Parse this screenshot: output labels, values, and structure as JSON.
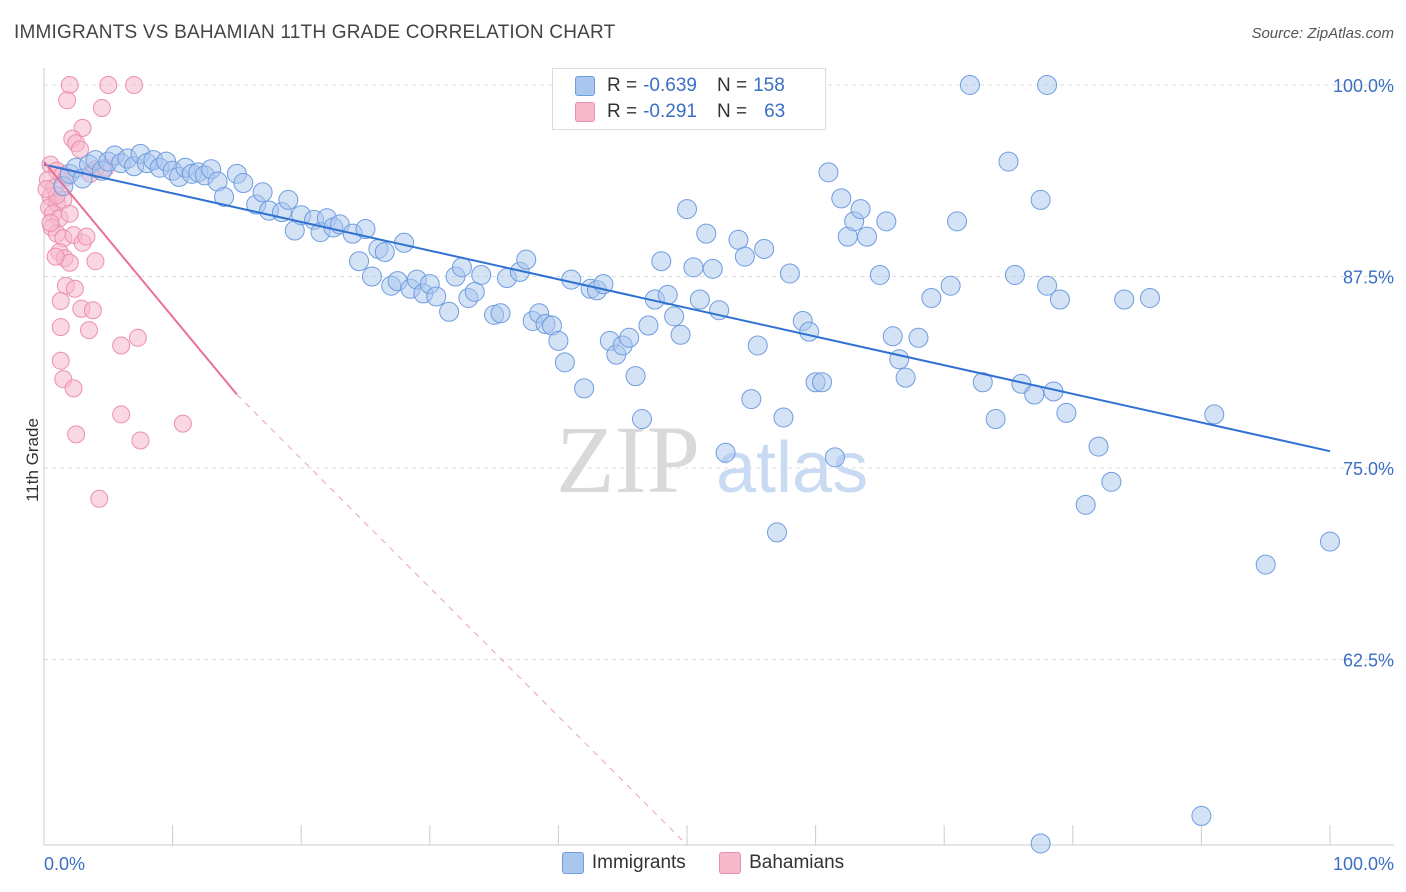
{
  "header": {
    "title": "IMMIGRANTS VS BAHAMIAN 11TH GRADE CORRELATION CHART",
    "source": "Source: ZipAtlas.com"
  },
  "watermark": {
    "zip": "ZIP",
    "atlas": "atlas"
  },
  "legend": {
    "rows": [
      {
        "r_label": "R =",
        "r_value": "-0.639",
        "n_label": "N =",
        "n_value": "158"
      },
      {
        "r_label": "R =",
        "r_value": "-0.291",
        "n_label": "N =",
        "n_value": "63"
      }
    ]
  },
  "bottom_legend": {
    "immigrants": "Immigrants",
    "bahamians": "Bahamians"
  },
  "colors": {
    "immigrants_fill": "#a9c6ee",
    "immigrants_stroke": "#6f9de0",
    "immigrants_line": "#2f72d1",
    "bahamians_fill": "#f6b8cb",
    "bahamians_stroke": "#ec8fb0",
    "bahamians_line": "#e8709a",
    "axis_label": "#3b6fc4",
    "grid": "#dddddd"
  },
  "chart_data": {
    "type": "scatter",
    "title": "IMMIGRANTS VS BAHAMIAN 11TH GRADE CORRELATION CHART",
    "xlabel": "",
    "ylabel": "11th Grade",
    "xlim": [
      0,
      100
    ],
    "ylim": [
      50.4,
      101.5
    ],
    "x_tick_labels": [
      "0.0%",
      "100.0%"
    ],
    "y_tick_labels": [
      {
        "value": 100,
        "label": "100.0%"
      },
      {
        "value": 87.5,
        "label": "87.5%"
      },
      {
        "value": 75,
        "label": "75.0%"
      },
      {
        "value": 62.5,
        "label": "62.5%"
      }
    ],
    "grid": true,
    "legend_position": "top-center",
    "series": [
      {
        "name": "Immigrants",
        "r": -0.639,
        "n": 158,
        "trend": {
          "x": [
            0,
            100
          ],
          "y": [
            94.8,
            76.1
          ],
          "dashed_extension": false
        },
        "points": [
          [
            1.5,
            93.4
          ],
          [
            2.0,
            94.2
          ],
          [
            2.5,
            94.6
          ],
          [
            3.0,
            93.9
          ],
          [
            3.5,
            94.8
          ],
          [
            4.0,
            95.1
          ],
          [
            4.5,
            94.4
          ],
          [
            5.0,
            95.0
          ],
          [
            5.5,
            95.4
          ],
          [
            6.0,
            94.9
          ],
          [
            6.5,
            95.2
          ],
          [
            7.0,
            94.7
          ],
          [
            7.5,
            95.5
          ],
          [
            8.0,
            94.9
          ],
          [
            8.5,
            95.1
          ],
          [
            9.0,
            94.6
          ],
          [
            9.5,
            95.0
          ],
          [
            10.0,
            94.4
          ],
          [
            10.5,
            94.0
          ],
          [
            11.0,
            94.6
          ],
          [
            11.5,
            94.2
          ],
          [
            12.0,
            94.3
          ],
          [
            12.5,
            94.1
          ],
          [
            13.0,
            94.5
          ],
          [
            13.5,
            93.7
          ],
          [
            14.0,
            92.7
          ],
          [
            15.0,
            94.2
          ],
          [
            15.5,
            93.6
          ],
          [
            16.5,
            92.2
          ],
          [
            17.0,
            93.0
          ],
          [
            17.5,
            91.8
          ],
          [
            18.5,
            91.7
          ],
          [
            19.0,
            92.5
          ],
          [
            19.5,
            90.5
          ],
          [
            20.0,
            91.5
          ],
          [
            21.0,
            91.2
          ],
          [
            21.5,
            90.4
          ],
          [
            22.0,
            91.3
          ],
          [
            22.5,
            90.7
          ],
          [
            23.0,
            90.9
          ],
          [
            24.0,
            90.3
          ],
          [
            24.5,
            88.5
          ],
          [
            25.0,
            90.6
          ],
          [
            25.5,
            87.5
          ],
          [
            26.0,
            89.3
          ],
          [
            26.5,
            89.1
          ],
          [
            27.0,
            86.9
          ],
          [
            27.5,
            87.2
          ],
          [
            28.0,
            89.7
          ],
          [
            28.5,
            86.7
          ],
          [
            29.0,
            87.3
          ],
          [
            29.5,
            86.4
          ],
          [
            30.0,
            87.0
          ],
          [
            30.5,
            86.2
          ],
          [
            31.5,
            85.2
          ],
          [
            32.0,
            87.5
          ],
          [
            32.5,
            88.1
          ],
          [
            33.0,
            86.1
          ],
          [
            33.5,
            86.5
          ],
          [
            34.0,
            87.6
          ],
          [
            35.0,
            85.0
          ],
          [
            35.5,
            85.1
          ],
          [
            36.0,
            87.4
          ],
          [
            37.0,
            87.8
          ],
          [
            37.5,
            88.6
          ],
          [
            38.0,
            84.6
          ],
          [
            38.5,
            85.1
          ],
          [
            39.0,
            84.4
          ],
          [
            39.5,
            84.3
          ],
          [
            40.0,
            83.3
          ],
          [
            40.5,
            81.9
          ],
          [
            41.0,
            87.3
          ],
          [
            42.0,
            80.2
          ],
          [
            42.5,
            86.7
          ],
          [
            43.0,
            86.6
          ],
          [
            43.5,
            87.0
          ],
          [
            44.0,
            83.3
          ],
          [
            44.5,
            82.4
          ],
          [
            45.0,
            83.0
          ],
          [
            45.5,
            83.5
          ],
          [
            46.0,
            81.0
          ],
          [
            46.5,
            78.2
          ],
          [
            47.0,
            84.3
          ],
          [
            47.5,
            86.0
          ],
          [
            48.0,
            88.5
          ],
          [
            48.5,
            86.3
          ],
          [
            49.0,
            84.9
          ],
          [
            49.5,
            83.7
          ],
          [
            50.0,
            91.9
          ],
          [
            50.5,
            88.1
          ],
          [
            51.0,
            86.0
          ],
          [
            51.5,
            90.3
          ],
          [
            52.0,
            88.0
          ],
          [
            52.5,
            85.3
          ],
          [
            53.0,
            76.0
          ],
          [
            54.0,
            89.9
          ],
          [
            54.5,
            88.8
          ],
          [
            55.0,
            79.5
          ],
          [
            55.5,
            83.0
          ],
          [
            56.0,
            89.3
          ],
          [
            57.0,
            70.8
          ],
          [
            57.5,
            78.3
          ],
          [
            58.0,
            87.7
          ],
          [
            59.0,
            84.6
          ],
          [
            59.5,
            83.9
          ],
          [
            60.0,
            80.6
          ],
          [
            60.5,
            80.6
          ],
          [
            61.0,
            94.3
          ],
          [
            61.5,
            75.7
          ],
          [
            62.0,
            92.6
          ],
          [
            62.5,
            90.1
          ],
          [
            63.0,
            91.1
          ],
          [
            63.5,
            91.9
          ],
          [
            64.0,
            90.1
          ],
          [
            65.0,
            87.6
          ],
          [
            65.5,
            91.1
          ],
          [
            66.0,
            83.6
          ],
          [
            66.5,
            82.1
          ],
          [
            67.0,
            80.9
          ],
          [
            68.0,
            83.5
          ],
          [
            69.0,
            86.1
          ],
          [
            70.5,
            86.9
          ],
          [
            71.0,
            91.1
          ],
          [
            72.0,
            100.0
          ],
          [
            73.0,
            80.6
          ],
          [
            74.0,
            78.2
          ],
          [
            75.0,
            95.0
          ],
          [
            75.5,
            87.6
          ],
          [
            76.0,
            80.5
          ],
          [
            77.0,
            79.8
          ],
          [
            77.5,
            92.5
          ],
          [
            78.0,
            86.9
          ],
          [
            78.5,
            80.0
          ],
          [
            79.0,
            86.0
          ],
          [
            79.5,
            78.6
          ],
          [
            81.0,
            72.6
          ],
          [
            82.0,
            76.4
          ],
          [
            83.0,
            74.1
          ],
          [
            84.0,
            86.0
          ],
          [
            86.0,
            86.1
          ],
          [
            78.0,
            100.0
          ],
          [
            90.0,
            52.3
          ],
          [
            91.0,
            78.5
          ],
          [
            95.0,
            68.7
          ],
          [
            100.0,
            70.2
          ],
          [
            77.5,
            50.5
          ]
        ]
      },
      {
        "name": "Bahamians",
        "r": -0.291,
        "n": 63,
        "trend": {
          "x": [
            0,
            15
          ],
          "y": [
            95.0,
            79.8
          ],
          "dashed_extension_to": [
            50,
            50.4
          ]
        },
        "points": [
          [
            2.0,
            100.0
          ],
          [
            5.0,
            100.0
          ],
          [
            7.0,
            100.0
          ],
          [
            1.8,
            99.0
          ],
          [
            4.5,
            98.5
          ],
          [
            3.0,
            97.2
          ],
          [
            2.2,
            96.5
          ],
          [
            2.5,
            96.2
          ],
          [
            2.8,
            95.8
          ],
          [
            0.5,
            94.8
          ],
          [
            1.0,
            94.4
          ],
          [
            1.4,
            94.1
          ],
          [
            4.0,
            94.5
          ],
          [
            4.8,
            94.6
          ],
          [
            0.3,
            93.8
          ],
          [
            0.8,
            93.3
          ],
          [
            0.5,
            92.7
          ],
          [
            1.0,
            92.3
          ],
          [
            1.5,
            92.5
          ],
          [
            0.4,
            92.0
          ],
          [
            0.7,
            91.6
          ],
          [
            1.2,
            91.3
          ],
          [
            2.0,
            91.6
          ],
          [
            0.6,
            90.7
          ],
          [
            1.0,
            90.3
          ],
          [
            1.5,
            90.0
          ],
          [
            2.3,
            90.2
          ],
          [
            3.0,
            89.7
          ],
          [
            3.3,
            90.1
          ],
          [
            1.2,
            89.1
          ],
          [
            1.6,
            88.7
          ],
          [
            2.0,
            88.4
          ],
          [
            0.9,
            88.8
          ],
          [
            4.0,
            88.5
          ],
          [
            1.7,
            86.9
          ],
          [
            2.4,
            86.7
          ],
          [
            1.3,
            85.9
          ],
          [
            2.9,
            85.4
          ],
          [
            3.8,
            85.3
          ],
          [
            1.3,
            84.2
          ],
          [
            3.5,
            84.0
          ],
          [
            6.0,
            83.0
          ],
          [
            7.3,
            83.5
          ],
          [
            1.3,
            82.0
          ],
          [
            1.5,
            80.8
          ],
          [
            2.3,
            80.2
          ],
          [
            6.0,
            78.5
          ],
          [
            10.8,
            77.9
          ],
          [
            2.5,
            77.2
          ],
          [
            7.5,
            76.8
          ],
          [
            4.3,
            73.0
          ],
          [
            1.0,
            92.8
          ],
          [
            0.5,
            91.0
          ],
          [
            1.8,
            94.0
          ],
          [
            3.6,
            94.2
          ],
          [
            0.2,
            93.2
          ]
        ]
      }
    ]
  }
}
